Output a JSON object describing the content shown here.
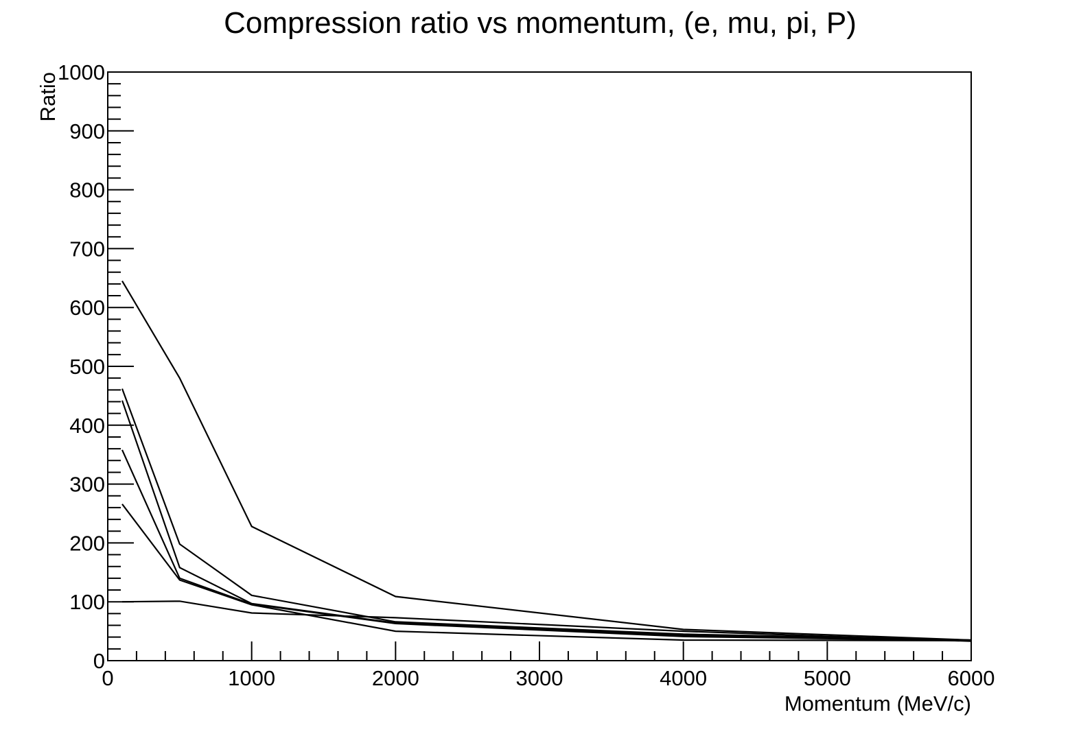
{
  "chart_data": {
    "type": "line",
    "title": "Compression ratio vs momentum, (e, mu, pi, P)",
    "xlabel": "Momentum (MeV/c)",
    "ylabel": "Ratio",
    "xlim": [
      0,
      6000
    ],
    "ylim": [
      0,
      1000
    ],
    "x_ticks": [
      "0",
      "1000",
      "2000",
      "3000",
      "4000",
      "5000",
      "6000"
    ],
    "y_ticks": [
      "0",
      "100",
      "200",
      "300",
      "400",
      "500",
      "600",
      "700",
      "800",
      "900",
      "1000"
    ],
    "x_tick_values": [
      0,
      1000,
      2000,
      3000,
      4000,
      5000,
      6000
    ],
    "y_tick_values": [
      0,
      100,
      200,
      300,
      400,
      500,
      600,
      700,
      800,
      900,
      1000
    ],
    "grid": false,
    "legend": "none",
    "line_color": "#000000",
    "series": [
      {
        "x": [
          100,
          500,
          1000,
          2000,
          4000,
          6000
        ],
        "values": [
          645,
          480,
          228,
          109,
          53,
          35
        ]
      },
      {
        "x": [
          100,
          500,
          1000,
          2000,
          4000,
          6000
        ],
        "values": [
          462,
          198,
          111,
          66,
          45,
          35
        ]
      },
      {
        "x": [
          100,
          500,
          1000,
          2000,
          4000,
          6000
        ],
        "values": [
          442,
          158,
          97,
          64,
          43,
          34
        ]
      },
      {
        "x": [
          100,
          500,
          1000,
          2000,
          4000,
          6000
        ],
        "values": [
          358,
          140,
          96,
          63,
          41,
          34
        ]
      },
      {
        "x": [
          100,
          500,
          1000,
          2000,
          4000,
          6000
        ],
        "values": [
          266,
          137,
          95,
          50,
          35,
          34
        ]
      },
      {
        "x": [
          100,
          500,
          1000,
          2000,
          4000,
          6000
        ],
        "values": [
          100,
          101,
          81,
          73,
          50,
          33
        ]
      }
    ]
  }
}
